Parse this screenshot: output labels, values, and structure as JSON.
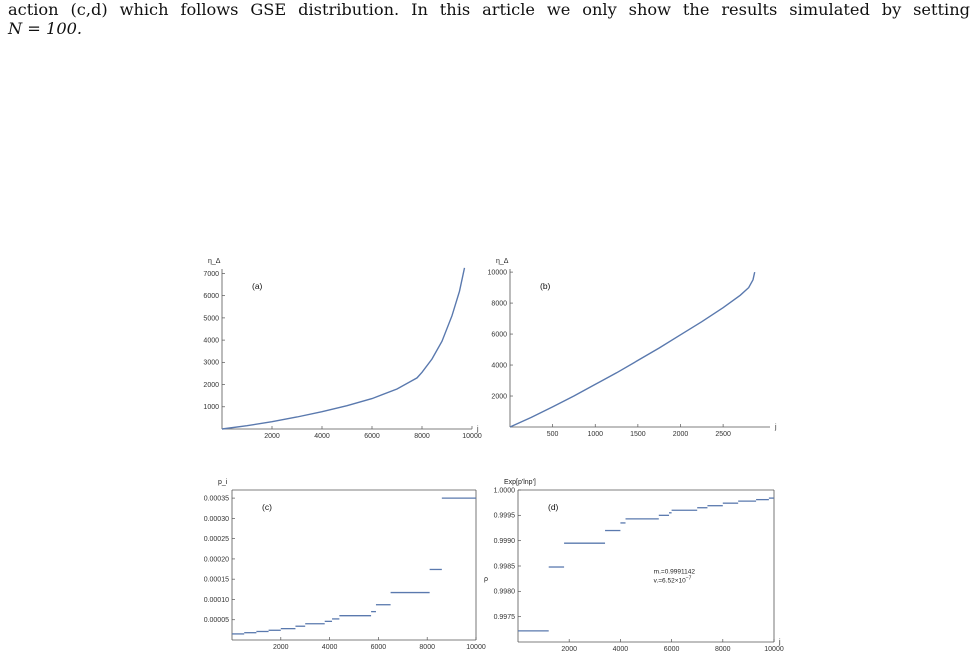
{
  "paragraph": {
    "line1": "action (c,d) which follows GSE distribution.  In this article we only show the results simulated by setting",
    "line2_math": "N = 100."
  },
  "colors": {
    "curve": "#5a79ae",
    "axis": "#555555"
  },
  "chart_data": [
    {
      "id": "a",
      "type": "line",
      "panel_label": "(a)",
      "ylabel": "η_Δ",
      "xlabel": "j",
      "xlim": [
        0,
        10000
      ],
      "ylim": [
        0,
        7200
      ],
      "xticks": [
        2000,
        4000,
        6000,
        8000,
        10000
      ],
      "yticks": [
        1000,
        2000,
        3000,
        4000,
        5000,
        6000,
        7000
      ],
      "x": [
        0,
        1000,
        2000,
        3000,
        4000,
        5000,
        6000,
        7000,
        7800,
        8000,
        8400,
        8800,
        9200,
        9500,
        9700
      ],
      "y": [
        0,
        150,
        330,
        540,
        780,
        1050,
        1370,
        1800,
        2300,
        2550,
        3150,
        3950,
        5100,
        6200,
        7250
      ]
    },
    {
      "id": "b",
      "type": "line",
      "panel_label": "(b)",
      "ylabel": "η_Δ",
      "xlabel": "j",
      "xlim": [
        0,
        3050
      ],
      "ylim": [
        0,
        10200
      ],
      "xticks": [
        500,
        1000,
        1500,
        2000,
        2500
      ],
      "yticks": [
        2000,
        4000,
        6000,
        8000,
        10000
      ],
      "x": [
        0,
        250,
        500,
        750,
        1000,
        1250,
        1500,
        1750,
        2000,
        2250,
        2500,
        2700,
        2800,
        2850,
        2870
      ],
      "y": [
        0,
        620,
        1300,
        2000,
        2750,
        3500,
        4300,
        5100,
        5950,
        6800,
        7700,
        8500,
        9000,
        9500,
        10000
      ]
    },
    {
      "id": "c",
      "type": "step",
      "panel_label": "(c)",
      "ylabel": "p_i",
      "xlabel": "",
      "xlim": [
        0,
        10000
      ],
      "ylim": [
        0,
        0.00037
      ],
      "xticks": [
        2000,
        4000,
        6000,
        8000,
        10000
      ],
      "yticks": [
        "0.00005",
        "0.00010",
        "0.00015",
        "0.00020",
        "0.00025",
        "0.00030",
        "0.00035"
      ],
      "segments": [
        [
          0,
          500,
          1.5e-05
        ],
        [
          500,
          1000,
          1.8e-05
        ],
        [
          1000,
          1500,
          2.1e-05
        ],
        [
          1500,
          2000,
          2.4e-05
        ],
        [
          2000,
          2600,
          2.8e-05
        ],
        [
          2600,
          3000,
          3.4e-05
        ],
        [
          3000,
          3800,
          4e-05
        ],
        [
          3800,
          4100,
          4.6e-05
        ],
        [
          4100,
          4400,
          5.2e-05
        ],
        [
          4400,
          5700,
          6e-05
        ],
        [
          5700,
          5900,
          7e-05
        ],
        [
          5900,
          6500,
          8.7e-05
        ],
        [
          6500,
          8100,
          0.000117
        ],
        [
          8100,
          8600,
          0.000174
        ],
        [
          8600,
          10000,
          0.00035
        ]
      ]
    },
    {
      "id": "d",
      "type": "step",
      "panel_label": "(d)",
      "ylabel": "Exp[p'lnp']",
      "xlabel": "j",
      "side_label": "ρ",
      "xlim": [
        0,
        10000
      ],
      "ylim": [
        0.997,
        1.0
      ],
      "xticks": [
        2000,
        4000,
        6000,
        8000,
        10000
      ],
      "yticks": [
        "0.9975",
        "0.9980",
        "0.9985",
        "0.9990",
        "0.9995",
        "1.0000"
      ],
      "annotation_mean": "m.=0.9991142",
      "annotation_var": "v.=6.52×10",
      "annotation_var_exp": "−7",
      "segments": [
        [
          0,
          1200,
          0.99722
        ],
        [
          1200,
          1800,
          0.99848
        ],
        [
          1800,
          3400,
          0.99895
        ],
        [
          3400,
          4000,
          0.9992
        ],
        [
          4000,
          4200,
          0.99935
        ],
        [
          4200,
          5500,
          0.99943
        ],
        [
          5500,
          5900,
          0.9995
        ],
        [
          5900,
          6000,
          0.99955
        ],
        [
          6000,
          7000,
          0.9996
        ],
        [
          7000,
          7400,
          0.99965
        ],
        [
          7400,
          8000,
          0.99969
        ],
        [
          8000,
          8600,
          0.99974
        ],
        [
          8600,
          9300,
          0.99978
        ],
        [
          9300,
          9800,
          0.99981
        ],
        [
          9800,
          10000,
          0.99984
        ]
      ]
    }
  ]
}
